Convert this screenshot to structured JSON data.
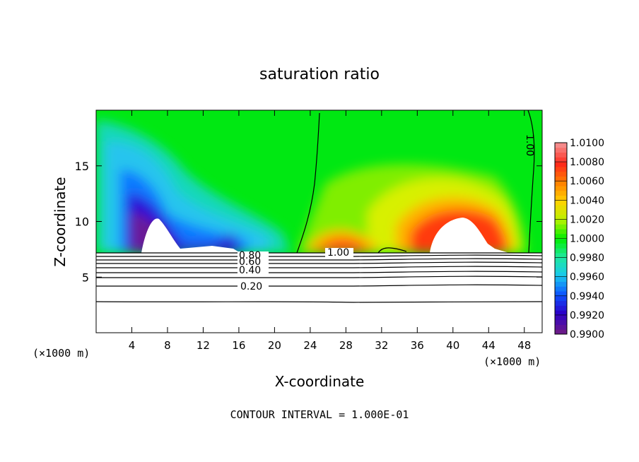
{
  "chart_data": {
    "type": "heatmap",
    "title": "saturation ratio",
    "xlabel": "X-coordinate",
    "ylabel": "Z-coordinate",
    "x_unit_label": "(×1000 m)",
    "x_unit_label_right": "(×1000 m)",
    "xlim": [
      0,
      50
    ],
    "ylim": [
      0,
      20
    ],
    "x_ticks": [
      4,
      8,
      12,
      16,
      20,
      24,
      28,
      32,
      36,
      40,
      44,
      48
    ],
    "y_ticks": [
      5,
      10,
      15
    ],
    "colorbar": {
      "min": 0.99,
      "max": 1.01,
      "ticks": [
        "1.0100",
        "1.0080",
        "1.0060",
        "1.0040",
        "1.0020",
        "1.0000",
        "0.9980",
        "0.9960",
        "0.9940",
        "0.9920",
        "0.9900"
      ],
      "colors": [
        "#6a1a8a",
        "#2a00c8",
        "#0c54ff",
        "#19c8ee",
        "#1ee8a0",
        "#00ee00",
        "#b8f200",
        "#ffd200",
        "#ff8000",
        "#ff2a1a",
        "#f58a8a"
      ]
    },
    "contour_labels": [
      "0.80",
      "0.60",
      "0.40",
      "0.20",
      "1.00",
      "1.00"
    ],
    "footer": "CONTOUR INTERVAL = 1.000E-01"
  }
}
